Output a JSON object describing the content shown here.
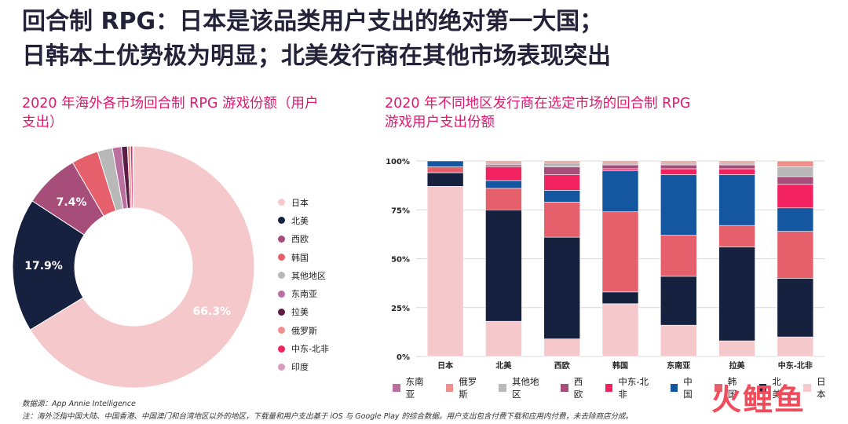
{
  "headline": {
    "line1": "回合制 RPG：日本是该品类用户支出的绝对第一大国；",
    "line2": "日韩本土优势极为明显；北美发行商在其他市场表现突出"
  },
  "colors": {
    "日本": "#f5c9cc",
    "北美": "#16203f",
    "西欧": "#a64d7a",
    "韩国": "#e5606a",
    "其他地区": "#b8b8b8",
    "东南亚": "#bb6fa0",
    "拉美": "#5c1d45",
    "俄罗斯": "#ef8f8c",
    "中东-北非": "#f2215f",
    "印度": "#d79bc0",
    "中国": "#14569f"
  },
  "chart_data": [
    {
      "type": "pie",
      "title": "2020 年海外各市场回合制 RPG 游戏份额（用户支出）",
      "slices": [
        {
          "label": "日本",
          "value": 66.3,
          "value_label": "66.3%"
        },
        {
          "label": "北美",
          "value": 17.9,
          "value_label": "17.9%"
        },
        {
          "label": "西欧",
          "value": 7.4,
          "value_label": "7.4%"
        },
        {
          "label": "韩国",
          "value": 3.6,
          "value_label": ""
        },
        {
          "label": "其他地区",
          "value": 2.0,
          "value_label": ""
        },
        {
          "label": "东南亚",
          "value": 1.2,
          "value_label": ""
        },
        {
          "label": "拉美",
          "value": 0.8,
          "value_label": ""
        },
        {
          "label": "俄罗斯",
          "value": 0.4,
          "value_label": ""
        },
        {
          "label": "中东-北非",
          "value": 0.3,
          "value_label": ""
        },
        {
          "label": "印度",
          "value": 0.1,
          "value_label": ""
        }
      ],
      "legend_position": "right"
    },
    {
      "type": "bar",
      "stacked": true,
      "title": "2020 年不同地区发行商在选定市场的回合制 RPG 游戏用户支出份额",
      "categories": [
        "日本",
        "北美",
        "西欧",
        "韩国",
        "东南亚",
        "拉美",
        "中东-北非"
      ],
      "y_ticks": [
        "0%",
        "25%",
        "50%",
        "75%",
        "100%"
      ],
      "ylim": [
        0,
        100
      ],
      "grid": true,
      "legend_position": "bottom",
      "series": [
        {
          "name": "日本",
          "values": [
            87,
            18,
            9,
            27,
            16,
            8,
            10
          ]
        },
        {
          "name": "北美",
          "values": [
            7,
            57,
            52,
            6,
            25,
            48,
            30
          ]
        },
        {
          "name": "韩国",
          "values": [
            3,
            11,
            18,
            41,
            21,
            11,
            24
          ]
        },
        {
          "name": "中国",
          "values": [
            3,
            4,
            6,
            21,
            31,
            26,
            12
          ]
        },
        {
          "name": "中东-北非",
          "values": [
            0,
            7,
            8,
            1,
            3,
            3,
            12
          ]
        },
        {
          "name": "西欧",
          "values": [
            0,
            1,
            4,
            2,
            2,
            2,
            4
          ]
        },
        {
          "name": "其他地区",
          "values": [
            0,
            1,
            2,
            1,
            1,
            1,
            5
          ]
        },
        {
          "name": "俄罗斯",
          "values": [
            0,
            1,
            1,
            1,
            1,
            1,
            3
          ]
        },
        {
          "name": "东南亚",
          "values": [
            0,
            0,
            0,
            0,
            0,
            0,
            0
          ]
        }
      ]
    }
  ],
  "bar_legend": [
    "东南亚",
    "俄罗斯",
    "其他地区",
    "西欧",
    "中东-北非",
    "中国",
    "韩国",
    "北美",
    "日本"
  ],
  "footer": {
    "source": "数据源：App Annie Intelligence",
    "note": "注：海外泛指中国大陆、中国香港、中国澳门和台湾地区以外的地区，下载量和用户支出基于 iOS 与 Google Play 的综合数据。用户支出包含付费下载和应用内付费，未去除商店分成。",
    "brand": "火鲤鱼"
  }
}
